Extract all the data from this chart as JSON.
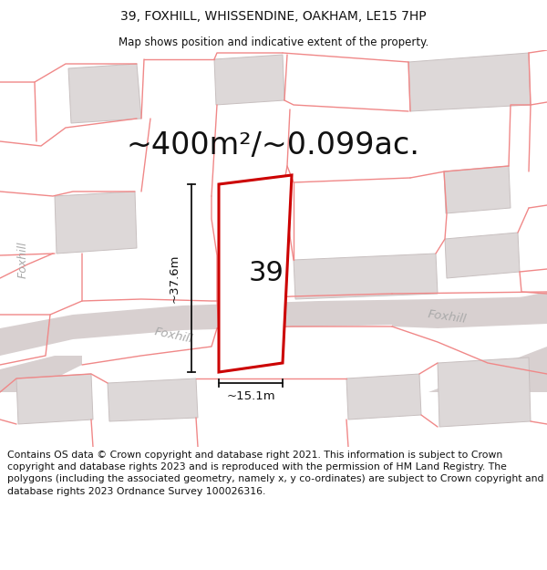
{
  "title": "39, FOXHILL, WHISSENDINE, OAKHAM, LE15 7HP",
  "subtitle": "Map shows position and indicative extent of the property.",
  "area_text": "~400m²/~0.099ac.",
  "label_number": "39",
  "dim_height": "~37.6m",
  "dim_width": "~15.1m",
  "footer": "Contains OS data © Crown copyright and database right 2021. This information is subject to Crown copyright and database rights 2023 and is reproduced with the permission of HM Land Registry. The polygons (including the associated geometry, namely x, y co-ordinates) are subject to Crown copyright and database rights 2023 Ordnance Survey 100026316.",
  "bg_color": "#ffffff",
  "map_bg": "#f7f2f2",
  "road_fill": "#d8d0d0",
  "building_fill": "#ddd8d8",
  "building_edge": "#c8c0c0",
  "pink_line": "#f08888",
  "red_line": "#cc0000",
  "dim_color": "#111111",
  "text_color": "#111111",
  "road_label_color": "#aaaaaa",
  "title_fontsize": 10,
  "subtitle_fontsize": 8.5,
  "area_fontsize": 24,
  "number_fontsize": 22,
  "footer_fontsize": 7.8,
  "road_label_fontsize": 9.5
}
